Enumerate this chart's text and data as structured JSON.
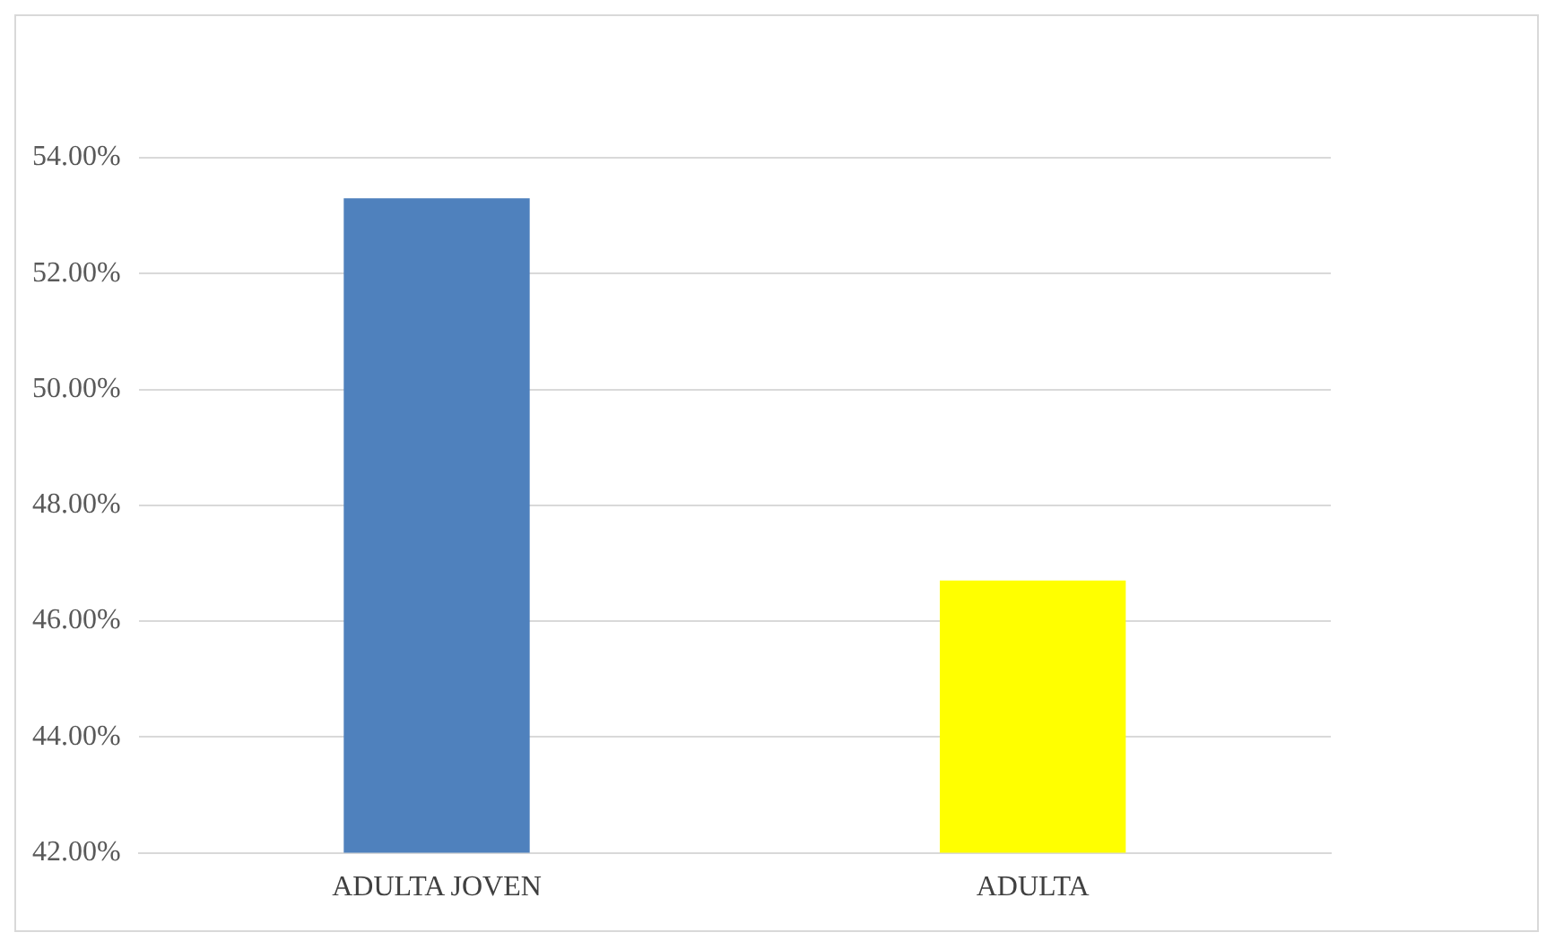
{
  "chart_data": {
    "type": "bar",
    "categories": [
      "ADULTA JOVEN",
      "ADULTA"
    ],
    "values": [
      53.3,
      46.7
    ],
    "colors": [
      "#4f81bd",
      "#ffff00"
    ],
    "ylim": [
      42,
      54
    ],
    "yticks": [
      {
        "value": 42,
        "label": "42.00%"
      },
      {
        "value": 44,
        "label": "44.00%"
      },
      {
        "value": 46,
        "label": "46.00%"
      },
      {
        "value": 48,
        "label": "48.00%"
      },
      {
        "value": 50,
        "label": "50.00%"
      },
      {
        "value": 52,
        "label": "52.00%"
      },
      {
        "value": 54,
        "label": "54.00%"
      }
    ],
    "grid": "y"
  }
}
